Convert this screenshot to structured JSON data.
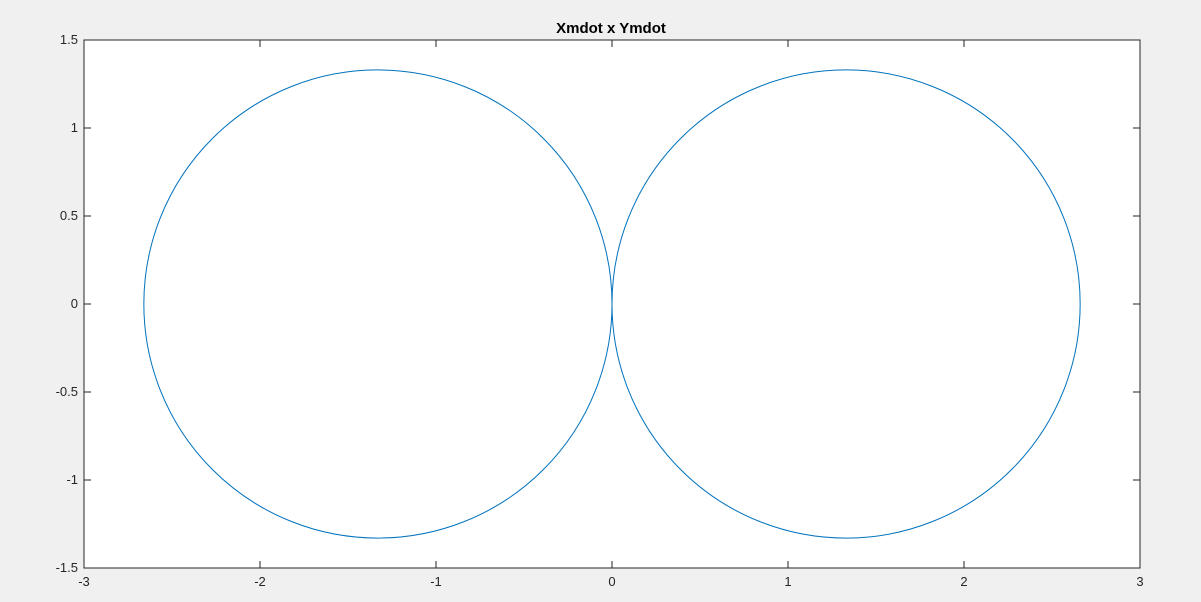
{
  "figure": {
    "background": "#f0f0f0"
  },
  "chart_data": {
    "type": "line",
    "title": "Xmdot x Ymdot",
    "xlabel": "",
    "ylabel": "",
    "xlim": [
      -3,
      3
    ],
    "ylim": [
      -1.5,
      1.5
    ],
    "xticks": [
      -3,
      -2,
      -1,
      0,
      1,
      2,
      3
    ],
    "xtick_labels": [
      "-3",
      "-2",
      "-1",
      "0",
      "1",
      "2",
      "3"
    ],
    "yticks": [
      -1.5,
      -1,
      -0.5,
      0,
      0.5,
      1,
      1.5
    ],
    "ytick_labels": [
      "-1.5",
      "-1",
      "-0.5",
      "0",
      "0.5",
      "1",
      "1.5"
    ],
    "grid": false,
    "box": true,
    "axes_background": "#ffffff",
    "axes_color": "#262626",
    "series": [
      {
        "color": "#0072bd",
        "shape": "two tangent circles touching at the origin",
        "circles": [
          {
            "center": [
              -1.33,
              0
            ],
            "radius": 1.33
          },
          {
            "center": [
              1.33,
              0
            ],
            "radius": 1.33
          }
        ]
      }
    ]
  }
}
